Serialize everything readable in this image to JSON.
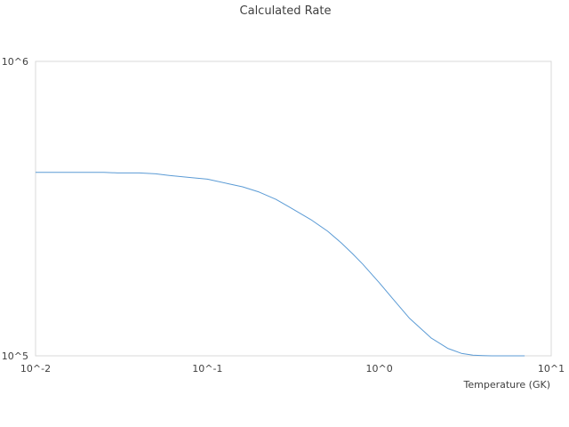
{
  "chart_data": {
    "type": "line",
    "title": "Calculated Rate",
    "xlabel": "Temperature (GK)",
    "ylabel": "",
    "x_scale": "log",
    "y_scale": "log",
    "xlim": [
      0.01,
      10
    ],
    "ylim": [
      100000,
      1000000
    ],
    "x_ticks": [
      {
        "value": 0.01,
        "label": "10^-2"
      },
      {
        "value": 0.1,
        "label": "10^-1"
      },
      {
        "value": 1,
        "label": "10^0"
      },
      {
        "value": 10,
        "label": "10^1"
      }
    ],
    "y_ticks": [
      {
        "value": 100000,
        "label": "10^5"
      },
      {
        "value": 1000000,
        "label": "10^6"
      }
    ],
    "grid": false,
    "legend": "none",
    "series": [
      {
        "color": "#5b9bd5",
        "x": [
          0.01,
          0.015,
          0.02,
          0.025,
          0.03,
          0.04,
          0.05,
          0.06,
          0.08,
          0.1,
          0.13,
          0.16,
          0.2,
          0.25,
          0.3,
          0.4,
          0.5,
          0.6,
          0.7,
          0.8,
          1.0,
          1.2,
          1.5,
          2.0,
          2.5,
          3.0,
          3.5,
          4.0,
          4.5,
          5.0,
          6.0,
          7.0
        ],
        "y": [
          420000,
          420000,
          420000,
          420000,
          418000,
          418000,
          415000,
          410000,
          403000,
          398000,
          385000,
          375000,
          360000,
          340000,
          320000,
          290000,
          265000,
          242000,
          222000,
          205000,
          177000,
          156000,
          134000,
          115000,
          106000,
          102000,
          100500,
          100200,
          100000,
          100000,
          100000,
          100000
        ]
      }
    ]
  }
}
